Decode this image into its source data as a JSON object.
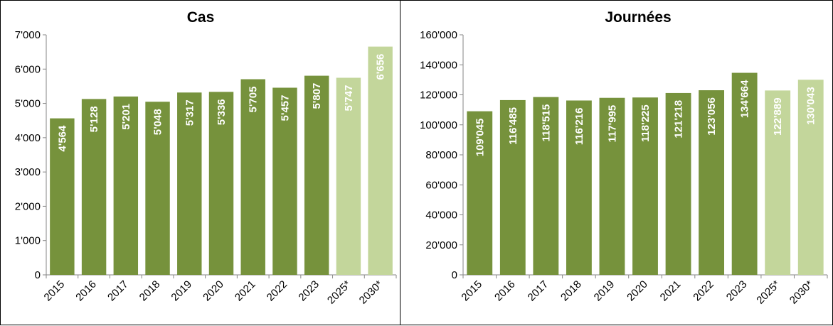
{
  "colors": {
    "actual": "#76923c",
    "projected": "#c3d69b"
  },
  "chart_data": [
    {
      "type": "bar",
      "title": "Cas",
      "categories": [
        "2015",
        "2016",
        "2017",
        "2018",
        "2019",
        "2020",
        "2021",
        "2022",
        "2023",
        "2025*",
        "2030*"
      ],
      "values": [
        4564,
        5128,
        5201,
        5048,
        5317,
        5336,
        5705,
        5457,
        5807,
        5747,
        6656
      ],
      "data_labels": [
        "4'564",
        "5'128",
        "5'201",
        "5'048",
        "5'317",
        "5'336",
        "5'705",
        "5'457",
        "5'807",
        "5'747",
        "6'656"
      ],
      "projected": [
        false,
        false,
        false,
        false,
        false,
        false,
        false,
        false,
        false,
        true,
        true
      ],
      "ylim": [
        0,
        7000
      ],
      "yticks": [
        0,
        1000,
        2000,
        3000,
        4000,
        5000,
        6000,
        7000
      ],
      "ytick_labels": [
        "0",
        "1'000",
        "2'000",
        "3'000",
        "4'000",
        "5'000",
        "6'000",
        "7'000"
      ],
      "xlabel": "",
      "ylabel": "",
      "grid": false,
      "legend": "none"
    },
    {
      "type": "bar",
      "title": "Journées",
      "categories": [
        "2015",
        "2016",
        "2017",
        "2018",
        "2019",
        "2020",
        "2021",
        "2022",
        "2023",
        "2025*",
        "2030*"
      ],
      "values": [
        109045,
        116485,
        118515,
        116216,
        117995,
        118225,
        121218,
        123056,
        134664,
        122889,
        130043
      ],
      "data_labels": [
        "109'045",
        "116'485",
        "118'515",
        "116'216",
        "117'995",
        "118'225",
        "121'218",
        "123'056",
        "134'664",
        "122'889",
        "130'043"
      ],
      "projected": [
        false,
        false,
        false,
        false,
        false,
        false,
        false,
        false,
        false,
        true,
        true
      ],
      "ylim": [
        0,
        160000
      ],
      "yticks": [
        0,
        20000,
        40000,
        60000,
        80000,
        100000,
        120000,
        140000,
        160000
      ],
      "ytick_labels": [
        "0",
        "20'000",
        "40'000",
        "60'000",
        "80'000",
        "100'000",
        "120'000",
        "140'000",
        "160'000"
      ],
      "xlabel": "",
      "ylabel": "",
      "grid": false,
      "legend": "none"
    }
  ]
}
